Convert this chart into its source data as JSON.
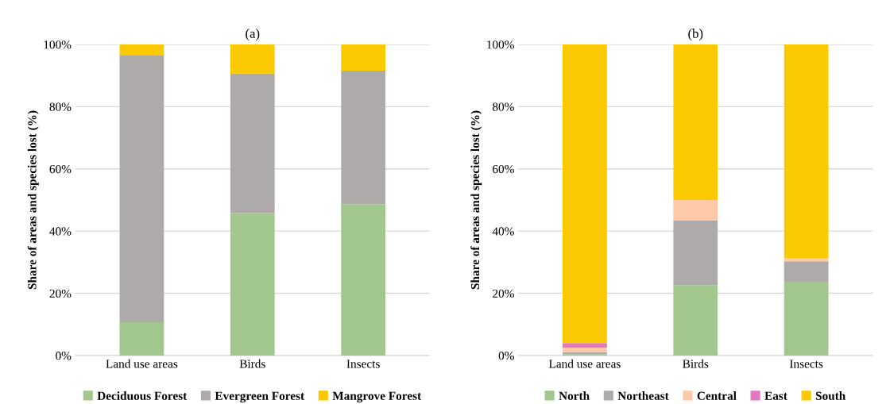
{
  "chart_data": [
    {
      "type": "bar",
      "title": "(a)",
      "ylabel": "Share of areas and species lost (%)",
      "categories": [
        "Land use areas",
        "Birds",
        "Insects"
      ],
      "stacked": true,
      "ylim": [
        0,
        100
      ],
      "yticks": [
        {
          "value": 0,
          "label": "0%"
        },
        {
          "value": 20,
          "label": "20%"
        },
        {
          "value": 40,
          "label": "40%"
        },
        {
          "value": 60,
          "label": "60%"
        },
        {
          "value": 80,
          "label": "80%"
        },
        {
          "value": 100,
          "label": "100%"
        }
      ],
      "grid": "y",
      "legend": "bottom",
      "series": [
        {
          "name": "Deciduous Forest",
          "color": "#a1c78d",
          "values": [
            10.7,
            45.8,
            48.6
          ]
        },
        {
          "name": "Evergreen Forest",
          "color": "#aeaaaa",
          "values": [
            85.7,
            44.8,
            43.0
          ]
        },
        {
          "name": "Mangrove Forest",
          "color": "#fbc900",
          "values": [
            3.6,
            9.4,
            8.4
          ]
        }
      ]
    },
    {
      "type": "bar",
      "title": "(b)",
      "ylabel": "Share of areas and species lost (%)",
      "categories": [
        "Land use areas",
        "Birds",
        "Insects"
      ],
      "stacked": true,
      "ylim": [
        0,
        100
      ],
      "yticks": [
        {
          "value": 0,
          "label": "0%"
        },
        {
          "value": 20,
          "label": "20%"
        },
        {
          "value": 40,
          "label": "40%"
        },
        {
          "value": 60,
          "label": "60%"
        },
        {
          "value": 80,
          "label": "80%"
        },
        {
          "value": 100,
          "label": "100%"
        }
      ],
      "grid": "y",
      "legend": "bottom",
      "series": [
        {
          "name": "North",
          "color": "#a1c78d",
          "values": [
            0.4,
            22.6,
            23.7
          ]
        },
        {
          "name": "Northeast",
          "color": "#aeaaaa",
          "values": [
            0.6,
            20.9,
            6.6
          ]
        },
        {
          "name": "Central",
          "color": "#fdc9a8",
          "values": [
            1.5,
            6.5,
            1.0
          ]
        },
        {
          "name": "East",
          "color": "#e079c0",
          "values": [
            1.5,
            0,
            0
          ]
        },
        {
          "name": "South",
          "color": "#fbc900",
          "values": [
            96.0,
            50.0,
            68.7
          ]
        }
      ]
    }
  ]
}
